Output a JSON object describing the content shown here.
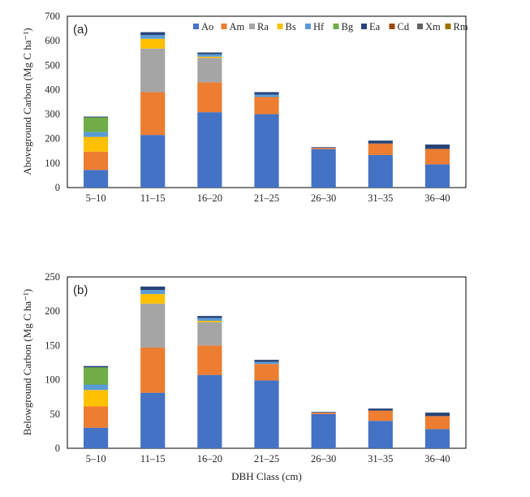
{
  "colors": {
    "Ao": "#4472C4",
    "Am": "#ED7D31",
    "Ra": "#A5A5A5",
    "Bs": "#FFC000",
    "Hf": "#5B9BD5",
    "Bg": "#70AD47",
    "Ea": "#264478",
    "Cd": "#9E480E",
    "Xm": "#636363",
    "Rm": "#997300"
  },
  "chart_data": [
    {
      "type": "bar",
      "stacked": true,
      "panel_label": "(a)",
      "xlabel": "",
      "ylabel": "Aboveground Carbon (Mg C ha⁻¹)",
      "ylim": [
        0,
        700
      ],
      "yticks": [
        0,
        100,
        200,
        300,
        400,
        500,
        600,
        700
      ],
      "legend_position": "top-right",
      "grid": false,
      "categories": [
        "5–10",
        "11–15",
        "16–20",
        "21–25",
        "26–30",
        "31–35",
        "36–40"
      ],
      "series": [
        {
          "name": "Ao",
          "values": [
            72,
            215,
            308,
            300,
            157,
            133,
            95
          ]
        },
        {
          "name": "Am",
          "values": [
            75,
            175,
            122,
            70,
            5,
            47,
            63
          ]
        },
        {
          "name": "Ra",
          "values": [
            0,
            178,
            100,
            0,
            0,
            0,
            0
          ]
        },
        {
          "name": "Bs",
          "values": [
            60,
            40,
            5,
            0,
            0,
            0,
            0
          ]
        },
        {
          "name": "Hf",
          "values": [
            20,
            15,
            10,
            10,
            0,
            0,
            0
          ]
        },
        {
          "name": "Bg",
          "values": [
            60,
            0,
            0,
            0,
            0,
            0,
            0
          ]
        },
        {
          "name": "Ea",
          "values": [
            3,
            12,
            7,
            10,
            3,
            12,
            18
          ]
        },
        {
          "name": "Cd",
          "values": [
            0,
            0,
            0,
            0,
            0,
            0,
            0
          ]
        },
        {
          "name": "Xm",
          "values": [
            0,
            0,
            0,
            0,
            0,
            0,
            0
          ]
        },
        {
          "name": "Rm",
          "values": [
            0,
            0,
            0,
            0,
            0,
            0,
            0
          ]
        }
      ]
    },
    {
      "type": "bar",
      "stacked": true,
      "panel_label": "(b)",
      "xlabel": "DBH Class (cm)",
      "ylabel": "Belowground Carbon (Mg C ha⁻¹)",
      "ylim": [
        0,
        250
      ],
      "yticks": [
        0,
        50,
        100,
        150,
        200,
        250
      ],
      "grid": false,
      "categories": [
        "5–10",
        "11–15",
        "16–20",
        "21–25",
        "26–30",
        "31–35",
        "36–40"
      ],
      "series": [
        {
          "name": "Ao",
          "values": [
            30,
            81,
            107,
            99,
            50,
            40,
            28
          ]
        },
        {
          "name": "Am",
          "values": [
            31,
            66,
            43,
            24,
            2,
            15,
            19
          ]
        },
        {
          "name": "Ra",
          "values": [
            0,
            64,
            34,
            0,
            0,
            0,
            0
          ]
        },
        {
          "name": "Bs",
          "values": [
            24,
            14,
            2,
            0,
            0,
            0,
            0
          ]
        },
        {
          "name": "Hf",
          "values": [
            8,
            6,
            4,
            3,
            0,
            0,
            0
          ]
        },
        {
          "name": "Bg",
          "values": [
            25,
            0,
            0,
            0,
            0,
            0,
            0
          ]
        },
        {
          "name": "Ea",
          "values": [
            2,
            5,
            3,
            3,
            1,
            3,
            5
          ]
        },
        {
          "name": "Cd",
          "values": [
            0,
            0,
            0,
            0,
            0,
            0,
            0
          ]
        },
        {
          "name": "Xm",
          "values": [
            0,
            0,
            0,
            0,
            0,
            0,
            0
          ]
        },
        {
          "name": "Rm",
          "values": [
            0,
            0,
            0,
            0,
            0,
            0,
            0
          ]
        }
      ]
    }
  ]
}
